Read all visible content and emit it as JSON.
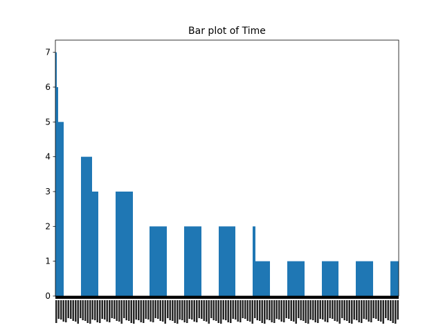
{
  "chart_data": {
    "type": "bar",
    "title": "Bar plot of Time",
    "xlabel": "",
    "ylabel": "",
    "ylim": [
      0,
      7.35
    ],
    "yticks": [
      0,
      1,
      2,
      3,
      4,
      5,
      6,
      7
    ],
    "grid": false,
    "legend": "none",
    "x_tick_labels_note_unreadable": true,
    "bars": [
      {
        "value": 7
      },
      {
        "value": 6
      },
      {
        "value": 5
      },
      {
        "value": 4
      },
      {
        "value": 3
      },
      {
        "value": 3
      },
      {
        "value": 2
      },
      {
        "value": 2
      },
      {
        "value": 2
      },
      {
        "value": 2
      },
      {
        "value": 1
      },
      {
        "value": 1
      },
      {
        "value": 1
      },
      {
        "value": 1
      },
      {
        "value": 1
      }
    ],
    "bar_color": "#1f77b4"
  }
}
